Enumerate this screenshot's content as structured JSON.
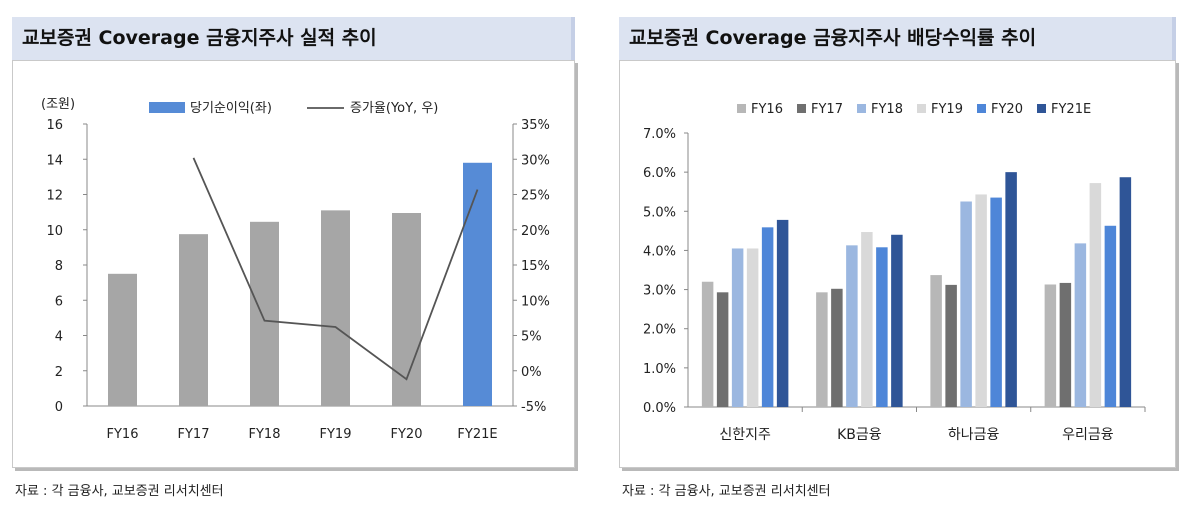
{
  "left_panel": {
    "title": "교보증권 Coverage 금융지주사 실적 추이",
    "source": "자료 : 각 금융사, 교보증권 리서치센터"
  },
  "right_panel": {
    "title": "교보증권 Coverage 금융지주사 배당수익률 추이",
    "source": "자료 : 각 금융사, 교보증권 리서치센터"
  },
  "chart_data": [
    {
      "type": "bar",
      "unit_label": "(조원)",
      "categories": [
        "FY16",
        "FY17",
        "FY18",
        "FY19",
        "FY20",
        "FY21E"
      ],
      "series": [
        {
          "name": "당기순이익(좌)",
          "type": "bar",
          "axis": "left",
          "values": [
            7.5,
            9.75,
            10.45,
            11.1,
            10.95,
            13.8
          ],
          "colors": [
            "#a6a6a6",
            "#a6a6a6",
            "#a6a6a6",
            "#a6a6a6",
            "#a6a6a6",
            "#568bd6"
          ]
        },
        {
          "name": "증가율(YoY, 우)",
          "type": "line",
          "axis": "right",
          "color": "#555555",
          "values": [
            null,
            30.2,
            7.1,
            6.2,
            -1.2,
            25.7
          ]
        }
      ],
      "y_left": {
        "min": 0,
        "max": 16,
        "step": 2,
        "ticks": [
          "0",
          "2",
          "4",
          "6",
          "8",
          "10",
          "12",
          "14",
          "16"
        ]
      },
      "y_right": {
        "min": -5,
        "max": 35,
        "step": 5,
        "ticks": [
          "-5%",
          "0%",
          "5%",
          "10%",
          "15%",
          "20%",
          "25%",
          "30%",
          "35%"
        ]
      },
      "legend_position": "top"
    },
    {
      "type": "bar",
      "categories": [
        "신한지주",
        "KB금융",
        "하나금융",
        "우리금융"
      ],
      "series": [
        {
          "name": "FY16",
          "color": "#b7b7b7",
          "values": [
            3.2,
            2.93,
            3.37,
            3.13
          ]
        },
        {
          "name": "FY17",
          "color": "#6f6f6f",
          "values": [
            2.93,
            3.02,
            3.12,
            3.17
          ]
        },
        {
          "name": "FY18",
          "color": "#9bb7e0",
          "values": [
            4.05,
            4.13,
            5.25,
            4.18
          ]
        },
        {
          "name": "FY19",
          "color": "#d9d9d9",
          "values": [
            4.05,
            4.47,
            5.43,
            5.72
          ]
        },
        {
          "name": "FY20",
          "color": "#4e86d8",
          "values": [
            4.59,
            4.08,
            5.35,
            4.63
          ]
        },
        {
          "name": "FY21E",
          "color": "#2f5597",
          "values": [
            4.78,
            4.4,
            6.0,
            5.87
          ]
        }
      ],
      "y": {
        "min": 0,
        "max": 7,
        "step": 1,
        "ticks": [
          "0.0%",
          "1.0%",
          "2.0%",
          "3.0%",
          "4.0%",
          "5.0%",
          "6.0%",
          "7.0%"
        ]
      },
      "legend_position": "top"
    }
  ]
}
